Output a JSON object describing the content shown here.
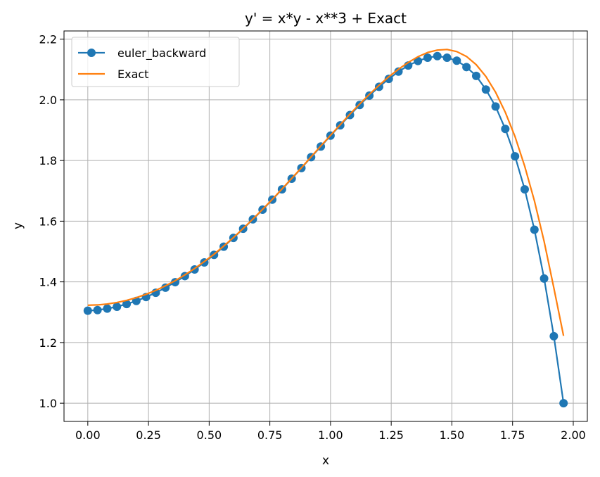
{
  "chart_data": {
    "type": "line",
    "title": "y' = x*y - x**3 + Exact",
    "xlabel": "x",
    "ylabel": "y",
    "xlim": [
      -0.098,
      2.058
    ],
    "ylim": [
      0.94,
      2.227
    ],
    "xticks": [
      0.0,
      0.25,
      0.5,
      0.75,
      1.0,
      1.25,
      1.5,
      1.75,
      2.0
    ],
    "xtick_labels": [
      "0.00",
      "0.25",
      "0.50",
      "0.75",
      "1.00",
      "1.25",
      "1.50",
      "1.75",
      "2.00"
    ],
    "yticks": [
      1.0,
      1.2,
      1.4,
      1.6,
      1.8,
      2.0,
      2.2
    ],
    "ytick_labels": [
      "1.0",
      "1.2",
      "1.4",
      "1.6",
      "1.8",
      "2.0",
      "2.2"
    ],
    "grid": true,
    "legend_position": "top-left",
    "series": [
      {
        "name": "euler_backward",
        "color": "#1f77b4",
        "marker": "circle",
        "x": [
          0.0,
          0.04,
          0.08,
          0.12,
          0.16,
          0.2,
          0.24,
          0.28,
          0.32,
          0.36,
          0.4,
          0.44,
          0.48,
          0.52,
          0.56,
          0.6,
          0.64,
          0.68,
          0.72,
          0.76,
          0.8,
          0.84,
          0.88,
          0.92,
          0.96,
          1.0,
          1.04,
          1.08,
          1.12,
          1.16,
          1.2,
          1.24,
          1.28,
          1.32,
          1.36,
          1.4,
          1.44,
          1.48,
          1.52,
          1.56,
          1.6,
          1.64,
          1.68,
          1.72,
          1.76,
          1.8,
          1.84,
          1.88,
          1.92,
          1.96
        ],
        "y": [
          1.305,
          1.307,
          1.312,
          1.318,
          1.327,
          1.337,
          1.35,
          1.364,
          1.381,
          1.399,
          1.419,
          1.441,
          1.464,
          1.489,
          1.516,
          1.545,
          1.575,
          1.606,
          1.638,
          1.671,
          1.705,
          1.74,
          1.775,
          1.811,
          1.846,
          1.882,
          1.916,
          1.95,
          1.983,
          2.014,
          2.043,
          2.069,
          2.093,
          2.113,
          2.128,
          2.139,
          2.144,
          2.139,
          2.129,
          2.108,
          2.079,
          2.034,
          1.978,
          1.904,
          1.814,
          1.705,
          1.572,
          1.411,
          1.221,
          1.0
        ]
      },
      {
        "name": "Exact",
        "color": "#ff7f0e",
        "marker": "none",
        "x": [
          0.0,
          0.04,
          0.08,
          0.12,
          0.16,
          0.2,
          0.24,
          0.28,
          0.32,
          0.36,
          0.4,
          0.44,
          0.48,
          0.52,
          0.56,
          0.6,
          0.64,
          0.68,
          0.72,
          0.76,
          0.8,
          0.84,
          0.88,
          0.92,
          0.96,
          1.0,
          1.04,
          1.08,
          1.12,
          1.16,
          1.2,
          1.24,
          1.28,
          1.32,
          1.36,
          1.4,
          1.44,
          1.48,
          1.52,
          1.56,
          1.6,
          1.64,
          1.68,
          1.72,
          1.76,
          1.8,
          1.84,
          1.88,
          1.92,
          1.96
        ],
        "y": [
          1.323,
          1.324,
          1.327,
          1.332,
          1.339,
          1.348,
          1.359,
          1.372,
          1.387,
          1.404,
          1.423,
          1.444,
          1.467,
          1.491,
          1.518,
          1.546,
          1.576,
          1.607,
          1.639,
          1.672,
          1.706,
          1.741,
          1.776,
          1.812,
          1.848,
          1.883,
          1.918,
          1.953,
          1.986,
          2.018,
          2.048,
          2.076,
          2.101,
          2.123,
          2.142,
          2.156,
          2.164,
          2.166,
          2.159,
          2.143,
          2.116,
          2.077,
          2.025,
          1.959,
          1.879,
          1.781,
          1.667,
          1.533,
          1.38,
          1.222
        ]
      }
    ]
  }
}
